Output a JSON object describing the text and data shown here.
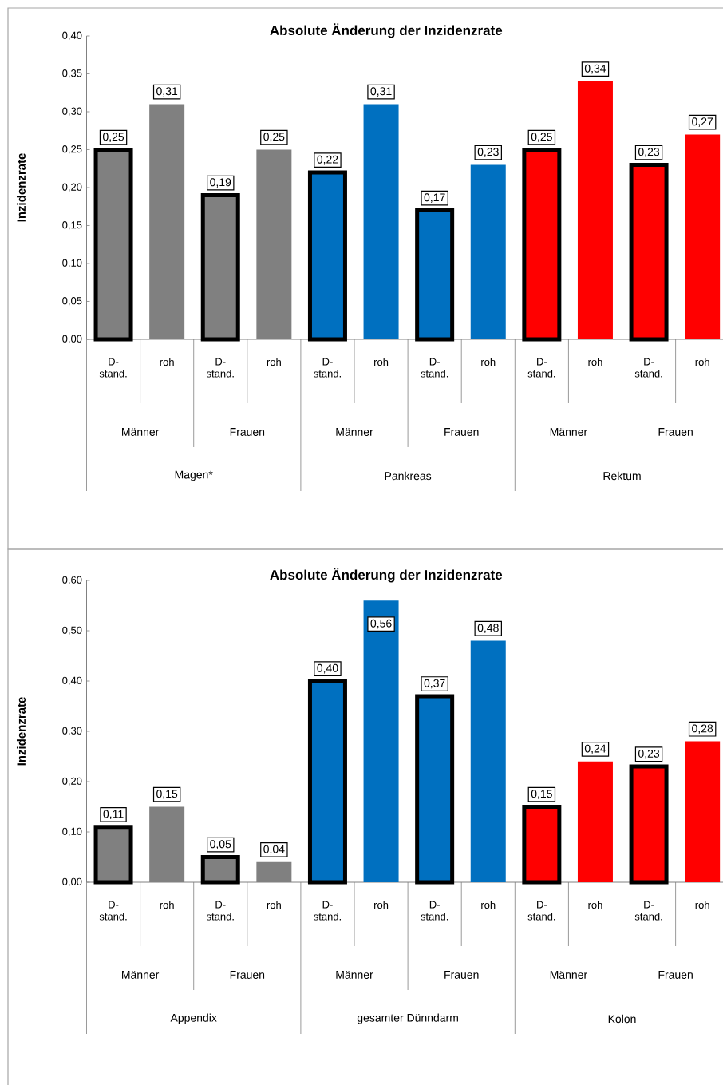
{
  "chart_data": [
    {
      "type": "bar",
      "title": "Absolute Änderung der Inzidenzrate",
      "ylabel": "Inzidenzrate",
      "categories": [
        "D- stand.",
        "roh",
        "D- stand.",
        "roh",
        "D- stand.",
        "roh",
        "D- stand.",
        "roh",
        "D- stand.",
        "roh",
        "D- stand.",
        "roh"
      ],
      "values": [
        0.25,
        0.31,
        0.19,
        0.25,
        0.22,
        0.31,
        0.17,
        0.23,
        0.25,
        0.34,
        0.23,
        0.27
      ],
      "value_labels": [
        "0,25",
        "0,31",
        "0,19",
        "0,25",
        "0,22",
        "0,31",
        "0,17",
        "0,23",
        "0,25",
        "0,34",
        "0,23",
        "0,27"
      ],
      "colors": [
        "#808080",
        "#808080",
        "#808080",
        "#808080",
        "#0070c0",
        "#0070c0",
        "#0070c0",
        "#0070c0",
        "#ff0000",
        "#ff0000",
        "#ff0000",
        "#ff0000"
      ],
      "ylim": [
        0,
        0.4
      ],
      "yticks": [
        {
          "value": 0,
          "label": "0,00"
        },
        {
          "value": 0.05,
          "label": "0,05"
        },
        {
          "value": 0.1,
          "label": "0,10"
        },
        {
          "value": 0.15,
          "label": "0,15"
        },
        {
          "value": 0.2,
          "label": "0,20"
        },
        {
          "value": 0.25,
          "label": "0,25"
        },
        {
          "value": 0.3,
          "label": "0,30"
        },
        {
          "value": 0.35,
          "label": "0,35"
        },
        {
          "value": 0.4,
          "label": "0,40"
        }
      ],
      "annotations": [
        "Männer",
        "Frauen",
        "Männer",
        "Frauen",
        "Männer",
        "Frauen",
        "Magen*",
        "Pankreas",
        "Rektum"
      ]
    },
    {
      "type": "bar",
      "title": "Absolute Änderung der Inzidenzrate",
      "ylabel": "Inzidenzrate",
      "categories": [
        "D- stand.",
        "roh",
        "D- stand.",
        "roh",
        "D- stand.",
        "roh",
        "D- stand.",
        "roh",
        "D- stand.",
        "roh",
        "D- stand.",
        "roh"
      ],
      "values": [
        0.11,
        0.15,
        0.05,
        0.04,
        0.4,
        0.56,
        0.37,
        0.48,
        0.15,
        0.24,
        0.23,
        0.28
      ],
      "value_labels": [
        "0,11",
        "0,15",
        "0,05",
        "0,04",
        "0,40",
        "0,56",
        "0,37",
        "0,48",
        "0,15",
        "0,24",
        "0,23",
        "0,28"
      ],
      "colors": [
        "#808080",
        "#808080",
        "#808080",
        "#808080",
        "#0070c0",
        "#0070c0",
        "#0070c0",
        "#0070c0",
        "#ff0000",
        "#ff0000",
        "#ff0000",
        "#ff0000"
      ],
      "ylim": [
        0,
        0.6
      ],
      "yticks": [
        {
          "value": 0,
          "label": "0,00"
        },
        {
          "value": 0.1,
          "label": "0,10"
        },
        {
          "value": 0.2,
          "label": "0,20"
        },
        {
          "value": 0.3,
          "label": "0,30"
        },
        {
          "value": 0.4,
          "label": "0,40"
        },
        {
          "value": 0.5,
          "label": "0,50"
        },
        {
          "value": 0.6,
          "label": "0,60"
        }
      ],
      "annotations": [
        "Männer",
        "Frauen",
        "Männer",
        "Frauen",
        "Männer",
        "Frauen",
        "Appendix",
        "gesamter Dünndarm",
        "Kolon"
      ]
    }
  ]
}
